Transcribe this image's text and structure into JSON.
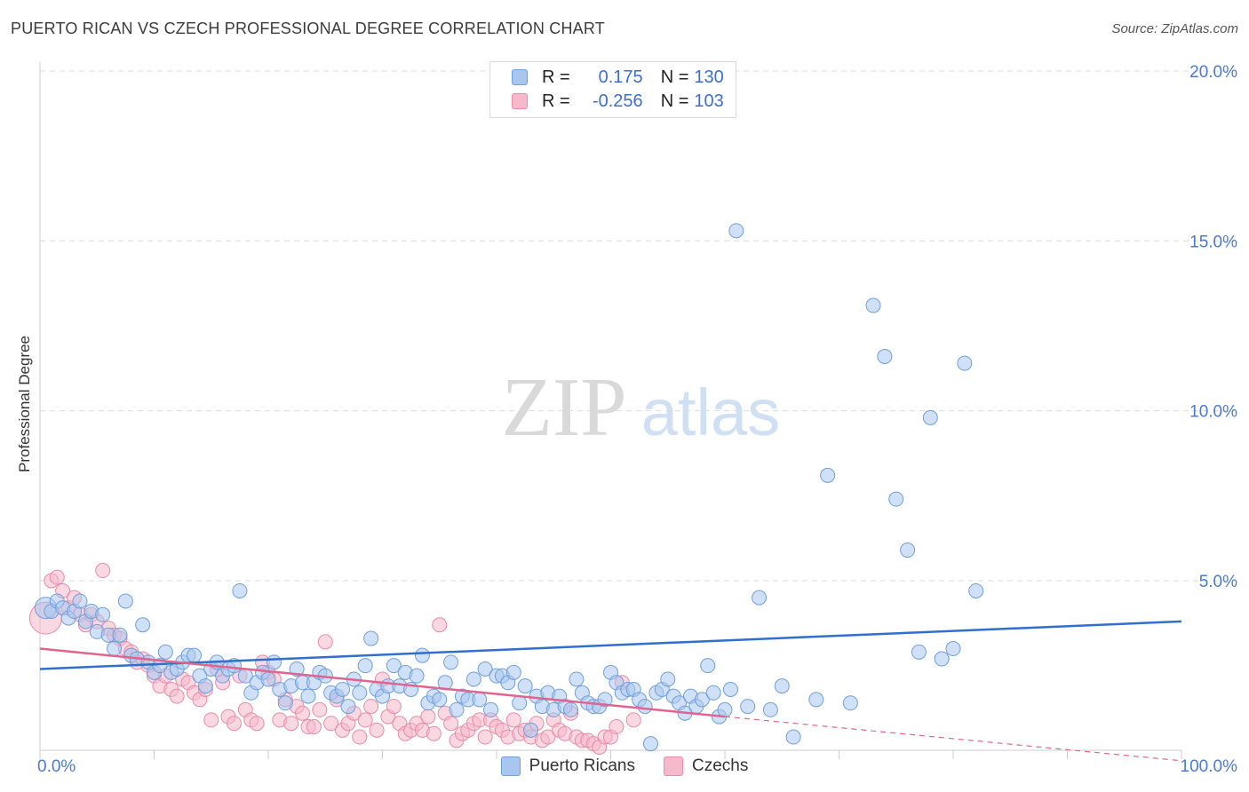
{
  "header": {
    "title": "PUERTO RICAN VS CZECH PROFESSIONAL DEGREE CORRELATION CHART",
    "source": "Source: ZipAtlas.com"
  },
  "watermark": {
    "zip": "ZIP",
    "atlas": "atlas"
  },
  "legend": {
    "rows": [
      {
        "r_label": "R =",
        "r_value": "0.175",
        "n_label": "N =",
        "n_value": "130"
      },
      {
        "r_label": "R =",
        "r_value": "-0.256",
        "n_label": "N =",
        "n_value": "103"
      }
    ]
  },
  "bottom_legend": {
    "puerto": "Puerto Ricans",
    "czech": "Czechs"
  },
  "colors": {
    "puerto_fill": "#a9c7ee",
    "puerto_stroke": "#6e9fdb",
    "puerto_line": "#2f6fcf",
    "czech_fill": "#f6b8cb",
    "czech_stroke": "#e98aa8",
    "czech_line": "#e0648e",
    "grid": "#dcdcdc",
    "axis_text": "#4a7bd0"
  },
  "chart_data": {
    "type": "scatter",
    "title": "PUERTO RICAN VS CZECH PROFESSIONAL DEGREE CORRELATION CHART",
    "xlabel": "",
    "ylabel": "Professional Degree",
    "xlim": [
      0,
      100
    ],
    "ylim": [
      0,
      21
    ],
    "x_tick_labels": [
      "0.0%",
      "100.0%"
    ],
    "y_ticks": [
      5,
      10,
      15,
      20
    ],
    "y_tick_labels": [
      "5.0%",
      "10.0%",
      "15.0%",
      "20.0%"
    ],
    "grid": true,
    "series": [
      {
        "name": "Puerto Ricans",
        "r": 0.175,
        "n": 130,
        "trend": {
          "x": [
            0,
            100
          ],
          "y": [
            2.4,
            3.8
          ]
        },
        "points": [
          [
            0.5,
            4.2
          ],
          [
            1,
            4.1
          ],
          [
            1.5,
            4.4
          ],
          [
            2,
            4.2
          ],
          [
            2.5,
            3.9
          ],
          [
            3,
            4.1
          ],
          [
            3.5,
            4.4
          ],
          [
            4,
            3.8
          ],
          [
            4.5,
            4.1
          ],
          [
            5,
            3.5
          ],
          [
            5.5,
            4.0
          ],
          [
            6,
            3.4
          ],
          [
            6.5,
            3.0
          ],
          [
            7,
            3.4
          ],
          [
            7.5,
            4.4
          ],
          [
            8,
            2.8
          ],
          [
            8.5,
            2.7
          ],
          [
            9,
            3.7
          ],
          [
            9.5,
            2.6
          ],
          [
            10,
            2.3
          ],
          [
            10.5,
            2.5
          ],
          [
            11,
            2.9
          ],
          [
            11.5,
            2.3
          ],
          [
            12,
            2.4
          ],
          [
            12.5,
            2.6
          ],
          [
            13,
            2.8
          ],
          [
            13.5,
            2.8
          ],
          [
            14,
            2.2
          ],
          [
            14.5,
            1.9
          ],
          [
            15,
            2.4
          ],
          [
            15.5,
            2.6
          ],
          [
            16,
            2.2
          ],
          [
            16.5,
            2.4
          ],
          [
            17,
            2.5
          ],
          [
            17.5,
            4.7
          ],
          [
            18,
            2.2
          ],
          [
            18.5,
            1.7
          ],
          [
            19,
            2.0
          ],
          [
            19.5,
            2.3
          ],
          [
            20,
            2.1
          ],
          [
            20.5,
            2.6
          ],
          [
            21,
            1.8
          ],
          [
            21.5,
            1.4
          ],
          [
            22,
            1.9
          ],
          [
            22.5,
            2.4
          ],
          [
            23,
            2.0
          ],
          [
            23.5,
            1.6
          ],
          [
            24,
            2.0
          ],
          [
            24.5,
            2.3
          ],
          [
            25,
            2.2
          ],
          [
            25.5,
            1.7
          ],
          [
            26,
            1.6
          ],
          [
            26.5,
            1.8
          ],
          [
            27,
            1.3
          ],
          [
            27.5,
            2.1
          ],
          [
            28,
            1.7
          ],
          [
            28.5,
            2.5
          ],
          [
            29,
            3.3
          ],
          [
            29.5,
            1.8
          ],
          [
            30,
            1.6
          ],
          [
            30.5,
            1.9
          ],
          [
            31,
            2.5
          ],
          [
            31.5,
            1.9
          ],
          [
            32,
            2.3
          ],
          [
            32.5,
            1.8
          ],
          [
            33,
            2.2
          ],
          [
            33.5,
            2.8
          ],
          [
            34,
            1.4
          ],
          [
            34.5,
            1.6
          ],
          [
            35,
            1.5
          ],
          [
            35.5,
            2.0
          ],
          [
            36,
            2.6
          ],
          [
            36.5,
            1.2
          ],
          [
            37,
            1.6
          ],
          [
            37.5,
            1.5
          ],
          [
            38,
            2.1
          ],
          [
            38.5,
            1.5
          ],
          [
            39,
            2.4
          ],
          [
            39.5,
            1.2
          ],
          [
            40,
            2.2
          ],
          [
            40.5,
            2.2
          ],
          [
            41,
            2.0
          ],
          [
            41.5,
            2.3
          ],
          [
            42,
            1.4
          ],
          [
            42.5,
            1.9
          ],
          [
            43,
            0.6
          ],
          [
            43.5,
            1.6
          ],
          [
            44,
            1.3
          ],
          [
            44.5,
            1.7
          ],
          [
            45,
            1.2
          ],
          [
            45.5,
            1.6
          ],
          [
            46,
            1.3
          ],
          [
            46.5,
            1.2
          ],
          [
            47,
            2.1
          ],
          [
            47.5,
            1.7
          ],
          [
            48,
            1.4
          ],
          [
            48.5,
            1.3
          ],
          [
            49,
            1.3
          ],
          [
            49.5,
            1.5
          ],
          [
            50,
            2.3
          ],
          [
            50.5,
            2.0
          ],
          [
            51,
            1.7
          ],
          [
            51.5,
            1.8
          ],
          [
            52,
            1.8
          ],
          [
            52.5,
            1.5
          ],
          [
            53,
            1.3
          ],
          [
            53.5,
            0.2
          ],
          [
            54,
            1.7
          ],
          [
            54.5,
            1.8
          ],
          [
            55,
            2.1
          ],
          [
            55.5,
            1.6
          ],
          [
            56,
            1.4
          ],
          [
            56.5,
            1.1
          ],
          [
            57,
            1.6
          ],
          [
            57.5,
            1.3
          ],
          [
            58,
            1.5
          ],
          [
            58.5,
            2.5
          ],
          [
            59,
            1.7
          ],
          [
            59.5,
            1.0
          ],
          [
            60,
            1.2
          ],
          [
            60.5,
            1.8
          ],
          [
            61,
            15.3
          ],
          [
            62,
            1.3
          ],
          [
            63,
            4.5
          ],
          [
            64,
            1.2
          ],
          [
            65,
            1.9
          ],
          [
            66,
            0.4
          ],
          [
            68,
            1.5
          ],
          [
            69,
            8.1
          ],
          [
            71,
            1.4
          ],
          [
            73,
            13.1
          ],
          [
            74,
            11.6
          ],
          [
            75,
            7.4
          ],
          [
            76,
            5.9
          ],
          [
            77,
            2.9
          ],
          [
            78,
            9.8
          ],
          [
            79,
            2.7
          ],
          [
            80,
            3.0
          ],
          [
            81,
            11.4
          ],
          [
            82,
            4.7
          ]
        ]
      },
      {
        "name": "Czechs",
        "r": -0.256,
        "n": 103,
        "trend": {
          "x": [
            0,
            60
          ],
          "y": [
            3.0,
            1.0
          ]
        },
        "trend_extension": {
          "x": [
            60,
            100
          ],
          "y": [
            1.0,
            -0.3
          ]
        },
        "points": [
          [
            0.5,
            3.9
          ],
          [
            1,
            5.0
          ],
          [
            1.5,
            5.1
          ],
          [
            2,
            4.7
          ],
          [
            2.5,
            4.2
          ],
          [
            3,
            4.5
          ],
          [
            3.5,
            4.0
          ],
          [
            4,
            3.7
          ],
          [
            4.5,
            4.0
          ],
          [
            5,
            3.8
          ],
          [
            5.5,
            5.3
          ],
          [
            6,
            3.6
          ],
          [
            6.5,
            3.4
          ],
          [
            7,
            3.3
          ],
          [
            7.5,
            3.0
          ],
          [
            8,
            2.9
          ],
          [
            8.5,
            2.6
          ],
          [
            9,
            2.7
          ],
          [
            9.5,
            2.5
          ],
          [
            10,
            2.2
          ],
          [
            10.5,
            1.9
          ],
          [
            11,
            2.2
          ],
          [
            11.5,
            1.8
          ],
          [
            12,
            1.6
          ],
          [
            12.5,
            2.1
          ],
          [
            13,
            2.0
          ],
          [
            13.5,
            1.7
          ],
          [
            14,
            1.5
          ],
          [
            14.5,
            1.8
          ],
          [
            15,
            0.9
          ],
          [
            15.5,
            2.4
          ],
          [
            16,
            2.0
          ],
          [
            16.5,
            1.0
          ],
          [
            17,
            0.8
          ],
          [
            17.5,
            2.2
          ],
          [
            18,
            1.2
          ],
          [
            18.5,
            0.9
          ],
          [
            19,
            0.8
          ],
          [
            19.5,
            2.6
          ],
          [
            20,
            2.3
          ],
          [
            20.5,
            2.1
          ],
          [
            21,
            0.9
          ],
          [
            21.5,
            1.5
          ],
          [
            22,
            0.8
          ],
          [
            22.5,
            1.3
          ],
          [
            23,
            1.1
          ],
          [
            23.5,
            0.7
          ],
          [
            24,
            0.7
          ],
          [
            24.5,
            1.2
          ],
          [
            25,
            3.2
          ],
          [
            25.5,
            0.8
          ],
          [
            26,
            1.5
          ],
          [
            26.5,
            0.6
          ],
          [
            27,
            0.8
          ],
          [
            27.5,
            1.1
          ],
          [
            28,
            0.4
          ],
          [
            28.5,
            0.9
          ],
          [
            29,
            1.3
          ],
          [
            29.5,
            0.6
          ],
          [
            30,
            2.1
          ],
          [
            30.5,
            1.0
          ],
          [
            31,
            1.3
          ],
          [
            31.5,
            0.8
          ],
          [
            32,
            0.5
          ],
          [
            32.5,
            0.6
          ],
          [
            33,
            0.8
          ],
          [
            33.5,
            0.6
          ],
          [
            34,
            1.0
          ],
          [
            34.5,
            0.5
          ],
          [
            35,
            3.7
          ],
          [
            35.5,
            1.1
          ],
          [
            36,
            0.8
          ],
          [
            36.5,
            0.3
          ],
          [
            37,
            0.5
          ],
          [
            37.5,
            0.6
          ],
          [
            38,
            0.8
          ],
          [
            38.5,
            0.9
          ],
          [
            39,
            0.4
          ],
          [
            39.5,
            0.9
          ],
          [
            40,
            0.7
          ],
          [
            40.5,
            0.6
          ],
          [
            41,
            0.4
          ],
          [
            41.5,
            0.9
          ],
          [
            42,
            0.5
          ],
          [
            42.5,
            0.6
          ],
          [
            43,
            0.4
          ],
          [
            43.5,
            0.8
          ],
          [
            44,
            0.3
          ],
          [
            44.5,
            0.4
          ],
          [
            45,
            0.9
          ],
          [
            45.5,
            0.6
          ],
          [
            46,
            0.5
          ],
          [
            46.5,
            1.1
          ],
          [
            47,
            0.4
          ],
          [
            47.5,
            0.3
          ],
          [
            48,
            0.3
          ],
          [
            48.5,
            0.2
          ],
          [
            49,
            0.1
          ],
          [
            49.5,
            0.4
          ],
          [
            50,
            0.4
          ],
          [
            50.5,
            0.7
          ],
          [
            51,
            2.0
          ],
          [
            52,
            0.9
          ]
        ]
      }
    ]
  }
}
